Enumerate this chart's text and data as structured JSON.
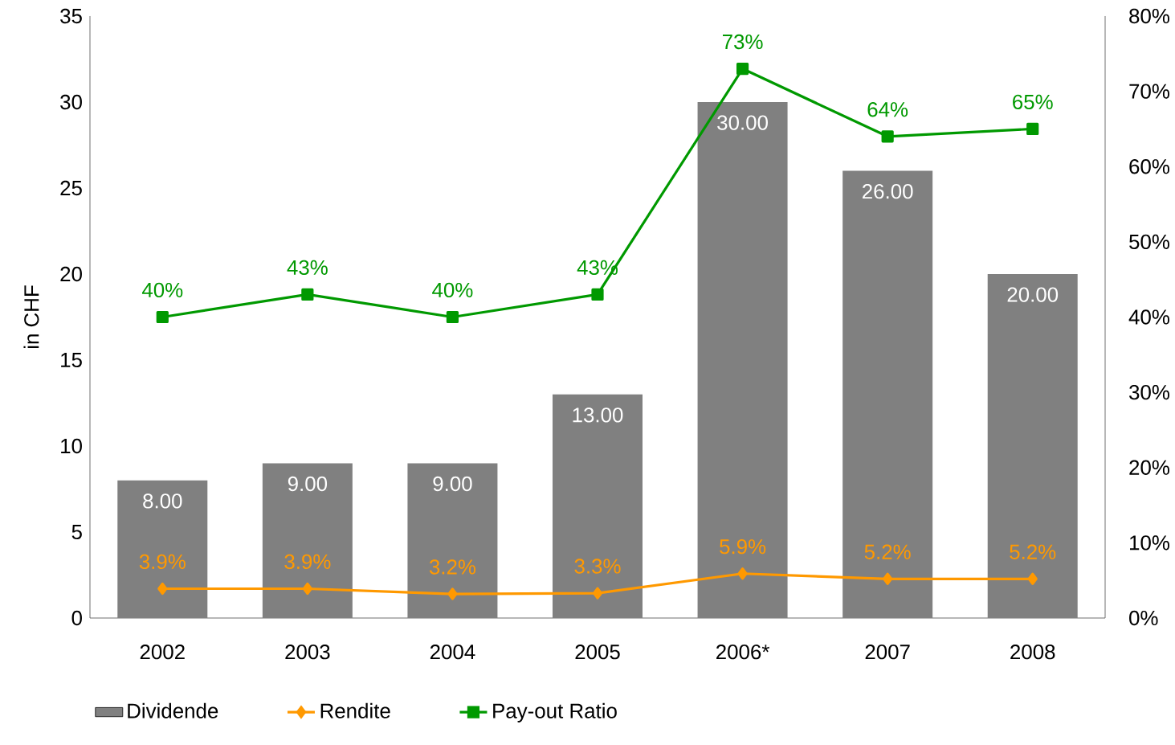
{
  "chart_data": {
    "type": "bar",
    "categories": [
      "2002",
      "2003",
      "2004",
      "2005",
      "2006*",
      "2007",
      "2008"
    ],
    "ylabel": "in CHF",
    "ylim": [
      0,
      35
    ],
    "yticks": [
      0,
      5,
      10,
      15,
      20,
      25,
      30,
      35
    ],
    "y2lim": [
      0,
      80
    ],
    "y2ticks": [
      {
        "value": 0,
        "label": "0%"
      },
      {
        "value": 10,
        "label": "10%"
      },
      {
        "value": 20,
        "label": "20%"
      },
      {
        "value": 30,
        "label": "30%"
      },
      {
        "value": 40,
        "label": "40%"
      },
      {
        "value": 50,
        "label": "50%"
      },
      {
        "value": 60,
        "label": "60%"
      },
      {
        "value": 70,
        "label": "70%"
      },
      {
        "value": 80,
        "label": "80%"
      }
    ],
    "legend": "bottom",
    "series": [
      {
        "name": "Dividende",
        "color": "#808080",
        "values": [
          8,
          9,
          9,
          13,
          30,
          26,
          20
        ],
        "value_labels": [
          "8.00",
          "9.00",
          "9.00",
          "13.00",
          "30.00",
          "26.00",
          "20.00"
        ]
      },
      {
        "name": "Rendite",
        "type": "line",
        "axis": "y2",
        "color": "#ff9900",
        "marker": "diamond",
        "values": [
          3.9,
          3.9,
          3.2,
          3.3,
          5.9,
          5.2,
          5.2
        ],
        "value_labels": [
          "3.9%",
          "3.9%",
          "3.2%",
          "3.3%",
          "5.9%",
          "5.2%",
          "5.2%"
        ]
      },
      {
        "name": "Pay-out Ratio",
        "type": "line",
        "axis": "y2",
        "color": "#009900",
        "marker": "square",
        "values": [
          40,
          43,
          40,
          43,
          73,
          64,
          65
        ],
        "value_labels": [
          "40%",
          "43%",
          "40%",
          "43%",
          "73%",
          "64%",
          "65%"
        ]
      }
    ]
  }
}
